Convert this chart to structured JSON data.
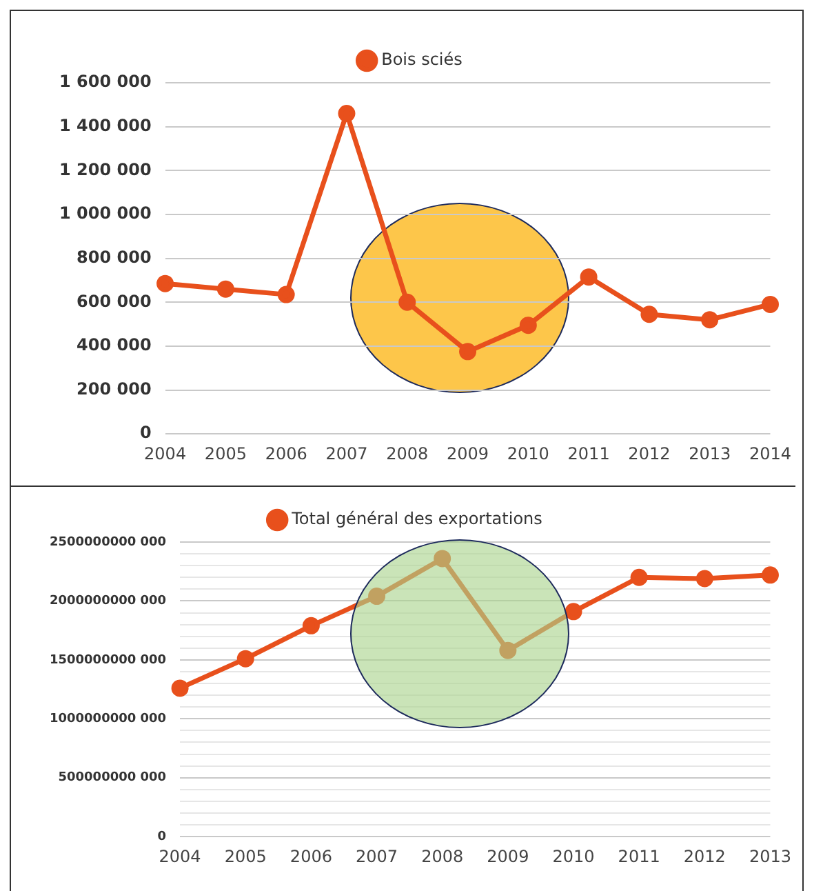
{
  "chart_data": [
    {
      "type": "line",
      "categories": [
        "2004",
        "2005",
        "2006",
        "2007",
        "2008",
        "2009",
        "2010",
        "2011",
        "2012",
        "2013",
        "2014"
      ],
      "series": [
        {
          "name": "Bois sciés",
          "color": "#e8501c",
          "values": [
            685000,
            660000,
            635000,
            1460000,
            600000,
            375000,
            495000,
            715000,
            545000,
            520000,
            590000
          ]
        }
      ],
      "ylim": [
        0,
        1600000
      ],
      "yticks": [
        {
          "value": 0,
          "label": "0"
        },
        {
          "value": 200000,
          "label": "200 000"
        },
        {
          "value": 400000,
          "label": "400 000"
        },
        {
          "value": 600000,
          "label": "600 000"
        },
        {
          "value": 800000,
          "label": "800 000"
        },
        {
          "value": 1000000,
          "label": "1 000 000"
        },
        {
          "value": 1200000,
          "label": "1 200 000"
        },
        {
          "value": 1400000,
          "label": "1 400 000"
        },
        {
          "value": 1600000,
          "label": "1 600 000"
        }
      ],
      "grid": "y",
      "legend": "top",
      "marker": "circle"
    },
    {
      "type": "line",
      "categories": [
        "2004",
        "2005",
        "2006",
        "2007",
        "2008",
        "2009",
        "2010",
        "2011",
        "2012",
        "2013"
      ],
      "series": [
        {
          "name": "Total général des exportations",
          "color": "#e8501c",
          "values": [
            1260000000000,
            1510000000000,
            1790000000000,
            2040000000000,
            2360000000000,
            1580000000000,
            1910000000000,
            2200000000000,
            2190000000000,
            2220000000000
          ]
        }
      ],
      "ylim": [
        0,
        2500000000000
      ],
      "yticks": [
        {
          "value": 0,
          "label": "0"
        },
        {
          "value": 100000000000,
          "label": null
        },
        {
          "value": 200000000000,
          "label": null
        },
        {
          "value": 300000000000,
          "label": null
        },
        {
          "value": 400000000000,
          "label": null
        },
        {
          "value": 500000000000,
          "label": "500000000 000"
        },
        {
          "value": 600000000000,
          "label": null
        },
        {
          "value": 700000000000,
          "label": null
        },
        {
          "value": 800000000000,
          "label": null
        },
        {
          "value": 900000000000,
          "label": null
        },
        {
          "value": 1000000000000,
          "label": "1000000000 000"
        },
        {
          "value": 1100000000000,
          "label": null
        },
        {
          "value": 1200000000000,
          "label": null
        },
        {
          "value": 1300000000000,
          "label": null
        },
        {
          "value": 1400000000000,
          "label": null
        },
        {
          "value": 1500000000000,
          "label": "1500000000 000"
        },
        {
          "value": 1600000000000,
          "label": null
        },
        {
          "value": 1700000000000,
          "label": null
        },
        {
          "value": 1800000000000,
          "label": null
        },
        {
          "value": 1900000000000,
          "label": null
        },
        {
          "value": 2000000000000,
          "label": "2000000000 000"
        },
        {
          "value": 2100000000000,
          "label": null
        },
        {
          "value": 2200000000000,
          "label": null
        },
        {
          "value": 2300000000000,
          "label": null
        },
        {
          "value": 2400000000000,
          "label": null
        },
        {
          "value": 2500000000000,
          "label": "2500000000 000"
        }
      ],
      "grid": "y",
      "legend": "top",
      "marker": "circle"
    }
  ]
}
